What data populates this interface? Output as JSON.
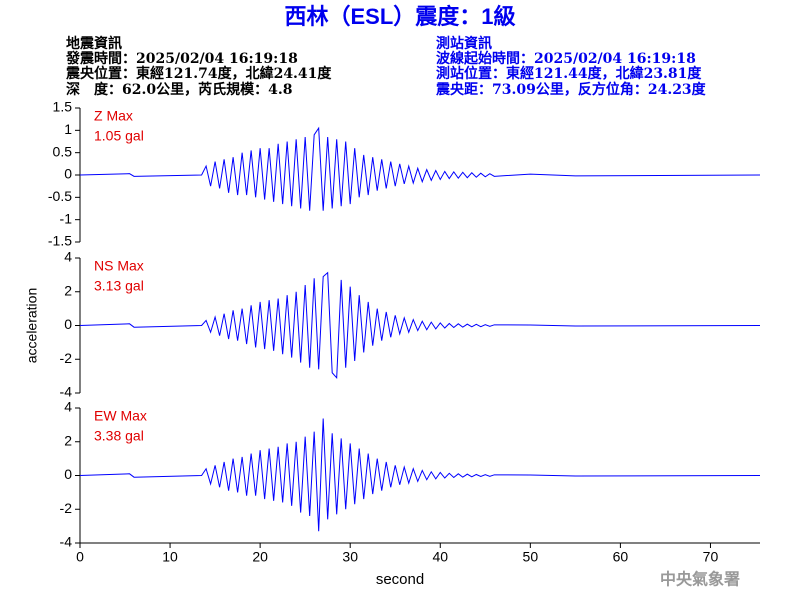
{
  "header": {
    "title": "西林（ESL）震度：1級",
    "left": [
      "地震資訊",
      "發震時間：2025/02/04 16:19:18",
      "震央位置：東經121.74度，北緯24.41度",
      "深　度：62.0公里，芮氏規模：4.8"
    ],
    "right": [
      "測站資訊",
      "波線起始時間：2025/02/04 16:19:18",
      "測站位置：東經121.44度，北緯23.81度",
      "震央距：73.09公里，反方位角：24.23度"
    ],
    "watermark": "中央氣象署"
  },
  "chart_data": [
    {
      "type": "line",
      "title": "Z Max",
      "annotation": "1.05 gal",
      "annotation_color": "#e00000",
      "x": [
        0,
        5.5,
        6,
        13.5,
        14,
        14.5,
        15,
        15.5,
        16,
        16.5,
        17,
        17.5,
        18,
        18.5,
        19,
        19.5,
        20,
        20.5,
        21,
        21.5,
        22,
        22.5,
        23,
        23.5,
        24,
        24.5,
        25,
        25.5,
        26,
        26.5,
        27,
        27.5,
        28,
        28.5,
        29,
        29.5,
        30,
        30.5,
        31,
        31.5,
        32,
        32.5,
        33,
        33.5,
        34,
        34.5,
        35,
        35.5,
        36,
        36.5,
        37,
        37.5,
        38,
        38.5,
        39,
        39.5,
        40,
        40.5,
        41,
        41.5,
        42,
        42.5,
        43,
        43.5,
        44,
        44.5,
        45,
        45.5,
        46,
        50,
        55,
        75.5
      ],
      "series": [
        {
          "color": "#0000ff",
          "values": [
            0,
            0.03,
            -0.03,
            0,
            0.2,
            -0.25,
            0.3,
            -0.3,
            0.35,
            -0.4,
            0.4,
            -0.45,
            0.5,
            -0.45,
            0.55,
            -0.5,
            0.6,
            -0.55,
            0.6,
            -0.6,
            0.7,
            -0.65,
            0.75,
            -0.7,
            0.8,
            -0.75,
            0.85,
            -0.8,
            0.9,
            1.05,
            -0.8,
            0.85,
            -0.75,
            0.8,
            -0.7,
            0.75,
            -0.65,
            0.6,
            -0.5,
            0.45,
            -0.45,
            0.4,
            -0.35,
            0.35,
            -0.3,
            0.3,
            -0.25,
            0.25,
            -0.2,
            0.2,
            -0.18,
            0.15,
            -0.15,
            0.12,
            -0.12,
            0.1,
            -0.1,
            0.08,
            -0.08,
            0.07,
            -0.07,
            0.06,
            -0.06,
            0.05,
            -0.05,
            0.04,
            -0.04,
            0.03,
            -0.03,
            0.02,
            -0.02,
            0
          ]
        }
      ],
      "xlim": [
        0,
        75.5
      ],
      "ylim": [
        -1.5,
        1.5
      ],
      "yticks": [
        -1.5,
        -1,
        -0.5,
        0,
        0.5,
        1,
        1.5
      ]
    },
    {
      "type": "line",
      "title": "NS Max",
      "annotation": "3.13 gal",
      "annotation_color": "#e00000",
      "ylabel": "acceleration",
      "x": [
        0,
        5.5,
        6,
        13.5,
        14,
        14.5,
        15,
        15.5,
        16,
        16.5,
        17,
        17.5,
        18,
        18.5,
        19,
        19.5,
        20,
        20.5,
        21,
        21.5,
        22,
        22.5,
        23,
        23.5,
        24,
        24.5,
        25,
        25.5,
        26,
        26.5,
        27,
        27.5,
        28,
        28.5,
        29,
        29.5,
        30,
        30.5,
        31,
        31.5,
        32,
        32.5,
        33,
        33.5,
        34,
        34.5,
        35,
        35.5,
        36,
        36.5,
        37,
        37.5,
        38,
        38.5,
        39,
        39.5,
        40,
        40.5,
        41,
        41.5,
        42,
        42.5,
        43,
        43.5,
        44,
        44.5,
        45,
        45.5,
        46,
        50,
        55,
        75.5
      ],
      "series": [
        {
          "color": "#0000ff",
          "values": [
            0,
            0.1,
            -0.1,
            0,
            0.3,
            -0.4,
            0.5,
            -0.6,
            0.7,
            -0.8,
            0.9,
            -0.9,
            1.0,
            -1.1,
            1.2,
            -1.3,
            1.4,
            -1.4,
            1.5,
            -1.5,
            1.6,
            -1.7,
            1.8,
            -1.9,
            2.0,
            -2.2,
            2.4,
            -2.5,
            2.8,
            -2.6,
            2.9,
            3.13,
            -2.8,
            -3.1,
            2.7,
            -2.5,
            2.3,
            -2.1,
            1.8,
            -1.6,
            1.4,
            -1.2,
            1.0,
            -0.9,
            0.8,
            -0.7,
            0.6,
            -0.5,
            0.45,
            -0.4,
            0.35,
            -0.3,
            0.25,
            -0.25,
            0.2,
            -0.2,
            0.15,
            -0.15,
            0.12,
            -0.12,
            0.1,
            -0.1,
            0.08,
            -0.08,
            0.07,
            -0.07,
            0.05,
            -0.05,
            0.04,
            0.03,
            -0.03,
            0
          ]
        }
      ],
      "xlim": [
        0,
        75.5
      ],
      "ylim": [
        -4,
        4
      ],
      "yticks": [
        -4,
        -2,
        0,
        2,
        4
      ]
    },
    {
      "type": "line",
      "title": "EW Max",
      "annotation": "3.38 gal",
      "annotation_color": "#e00000",
      "xlabel": "second",
      "x": [
        0,
        5.5,
        6,
        13.5,
        14,
        14.5,
        15,
        15.5,
        16,
        16.5,
        17,
        17.5,
        18,
        18.5,
        19,
        19.5,
        20,
        20.5,
        21,
        21.5,
        22,
        22.5,
        23,
        23.5,
        24,
        24.5,
        25,
        25.5,
        26,
        26.5,
        27,
        27.5,
        28,
        28.5,
        29,
        29.5,
        30,
        30.5,
        31,
        31.5,
        32,
        32.5,
        33,
        33.5,
        34,
        34.5,
        35,
        35.5,
        36,
        36.5,
        37,
        37.5,
        38,
        38.5,
        39,
        39.5,
        40,
        40.5,
        41,
        41.5,
        42,
        42.5,
        43,
        43.5,
        44,
        44.5,
        45,
        45.5,
        46,
        50,
        55,
        75.5
      ],
      "series": [
        {
          "color": "#0000ff",
          "values": [
            0,
            0.1,
            -0.1,
            0,
            0.4,
            -0.5,
            0.6,
            -0.7,
            0.8,
            -0.9,
            1.0,
            -1.0,
            1.1,
            -1.2,
            1.3,
            -1.2,
            1.5,
            -1.4,
            1.6,
            -1.5,
            1.7,
            -1.6,
            1.9,
            -1.8,
            2.0,
            -2.2,
            2.3,
            -2.4,
            2.6,
            -3.3,
            3.38,
            -2.6,
            2.5,
            -2.3,
            2.2,
            -2.0,
            1.9,
            -1.7,
            1.6,
            -1.4,
            1.3,
            -1.1,
            1.0,
            -0.9,
            0.8,
            -0.7,
            0.6,
            -0.55,
            0.5,
            -0.45,
            0.4,
            -0.35,
            0.3,
            -0.25,
            0.22,
            -0.2,
            0.18,
            -0.15,
            0.13,
            -0.12,
            0.1,
            -0.1,
            0.08,
            -0.08,
            0.06,
            -0.06,
            0.05,
            -0.05,
            0.04,
            0.03,
            -0.03,
            0
          ]
        }
      ],
      "xlim": [
        0,
        75.5
      ],
      "xticks": [
        0,
        10,
        20,
        30,
        40,
        50,
        60,
        70
      ],
      "ylim": [
        -4,
        4
      ],
      "yticks": [
        -4,
        -2,
        0,
        2,
        4
      ]
    }
  ]
}
